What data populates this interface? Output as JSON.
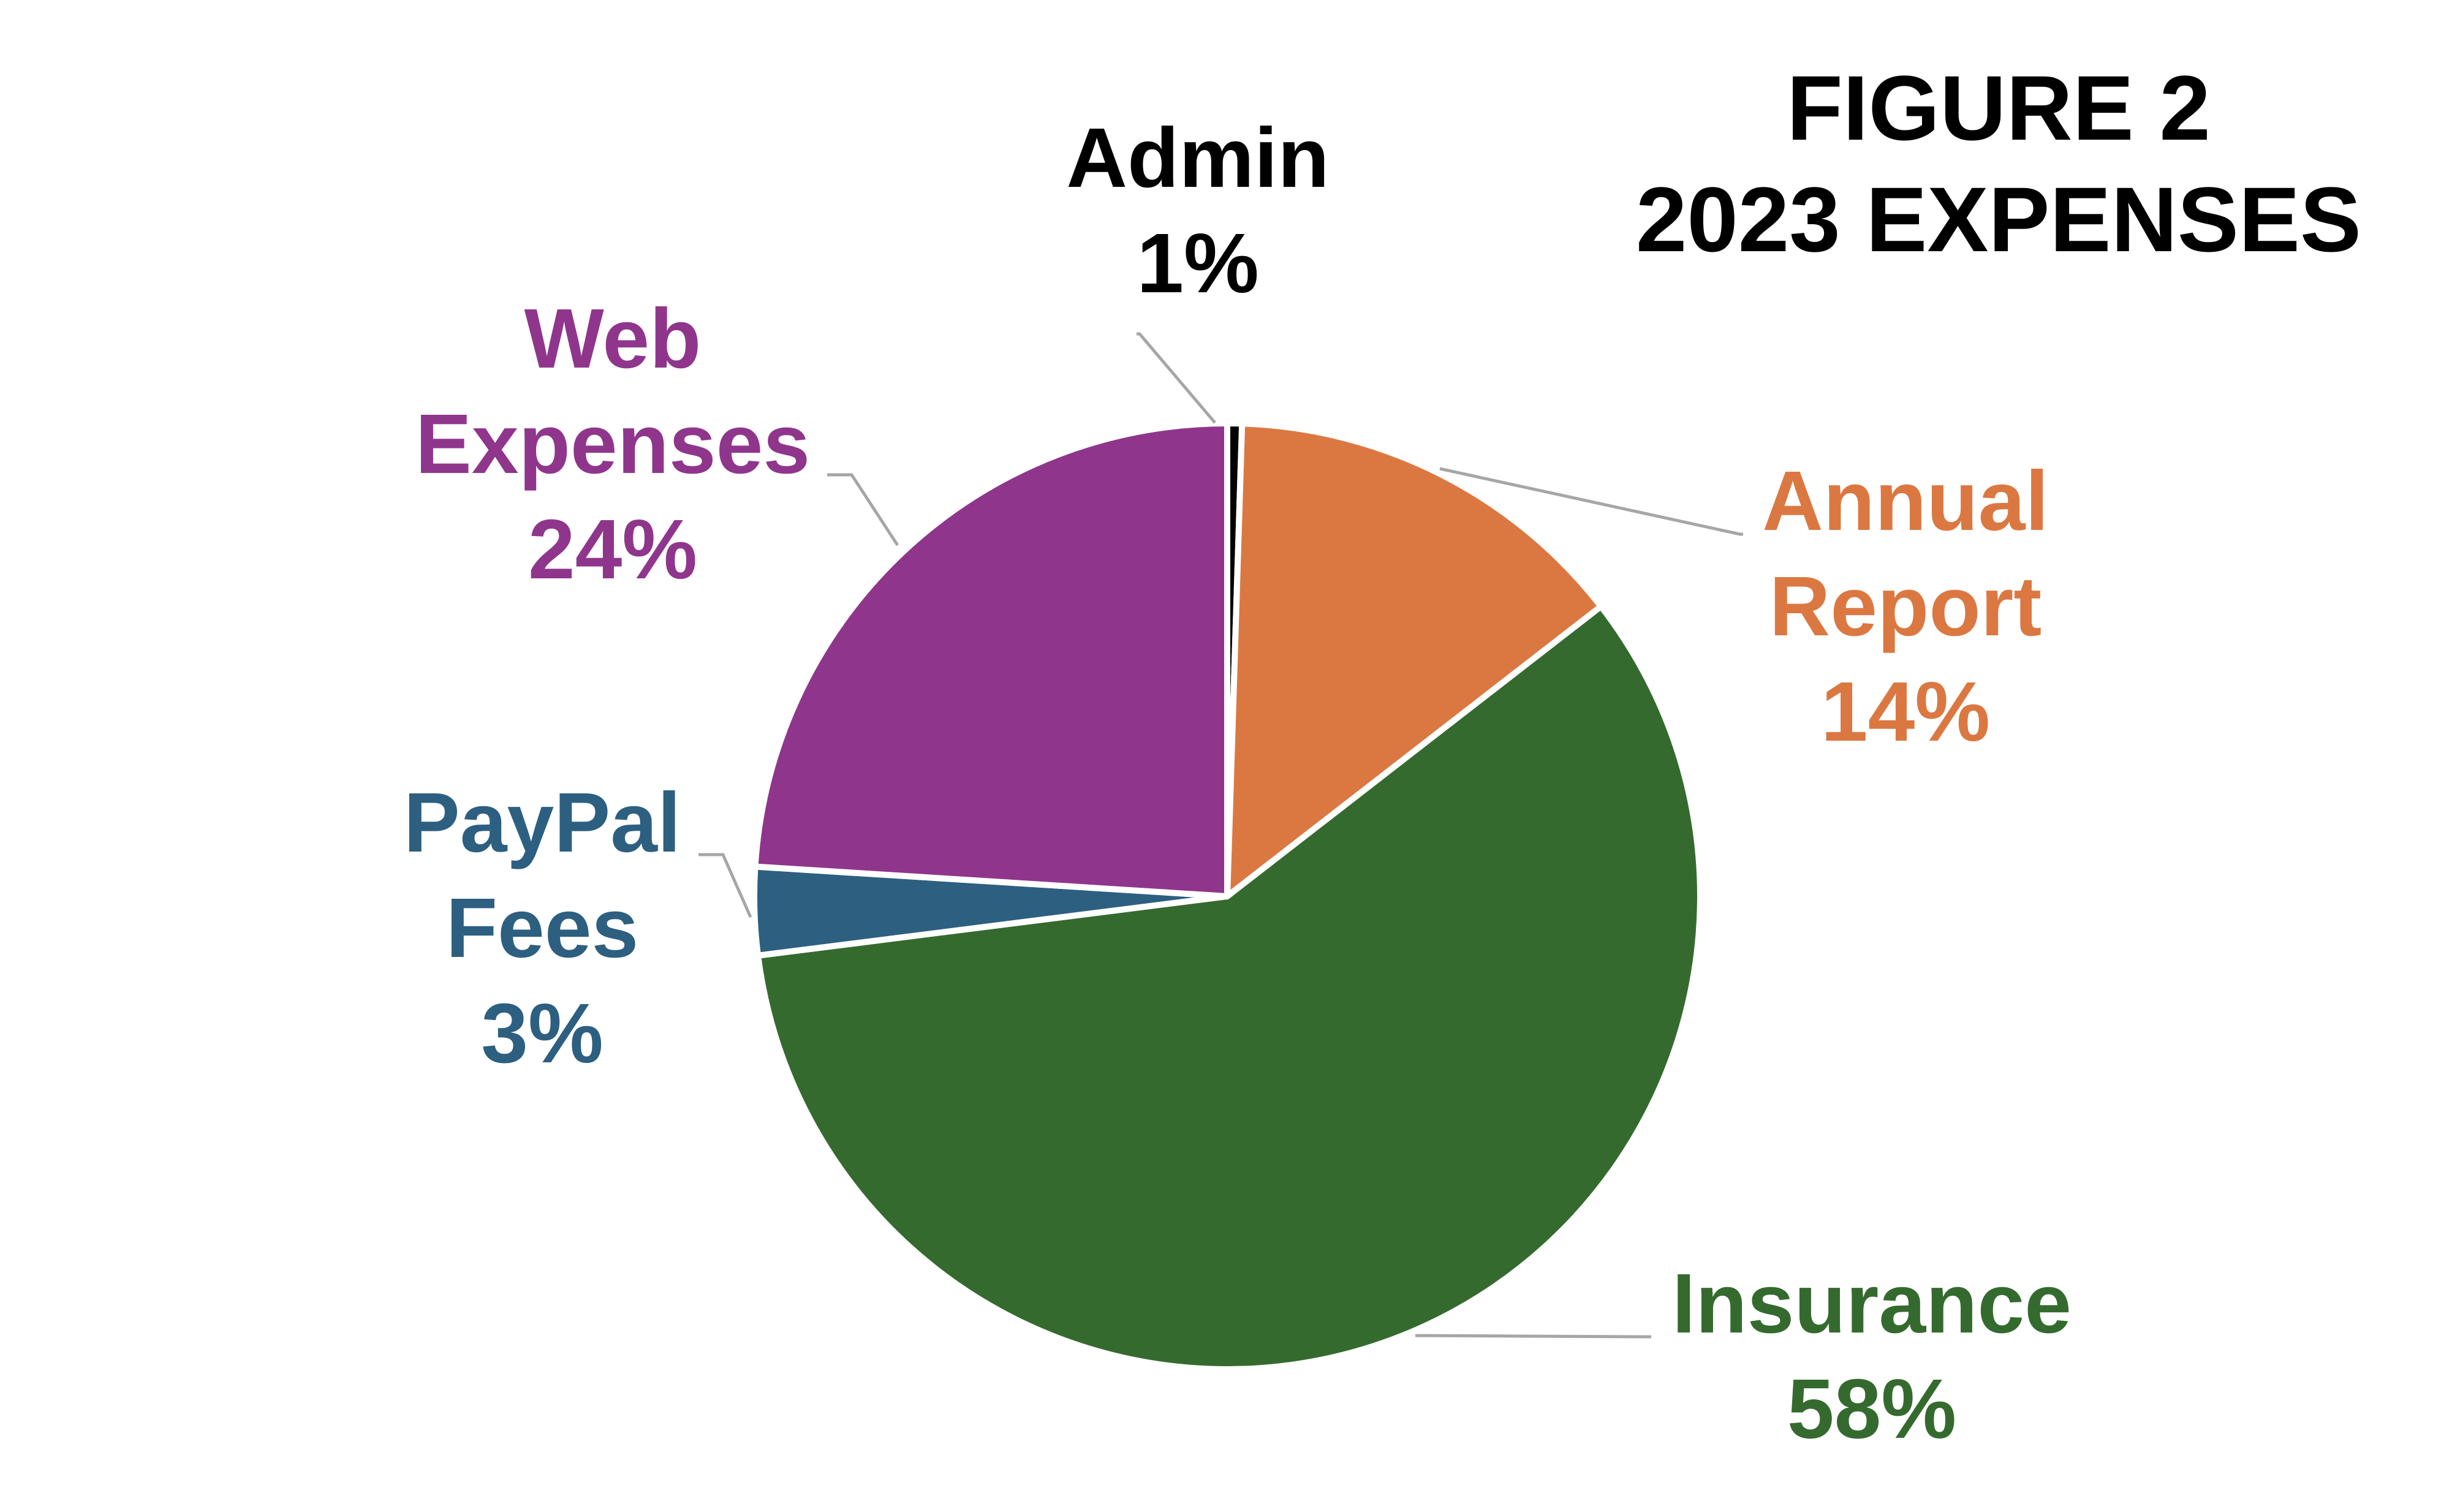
{
  "chart_data": {
    "type": "pie",
    "title_lines": [
      "FIGURE 2",
      "2023 EXPENSES"
    ],
    "slices": [
      {
        "label_lines": [
          "Admin"
        ],
        "percent_label": "1%",
        "value": 0.5,
        "color": "#000000",
        "label_color": "#000000"
      },
      {
        "label_lines": [
          "Annual",
          "Report"
        ],
        "percent_label": "14%",
        "value": 14,
        "color": "#DB7842",
        "label_color": "#DB7842"
      },
      {
        "label_lines": [
          "Insurance"
        ],
        "percent_label": "58%",
        "value": 58.5,
        "color": "#356A2F",
        "label_color": "#356A2F"
      },
      {
        "label_lines": [
          "PayPal",
          "Fees"
        ],
        "percent_label": "3%",
        "value": 3,
        "color": "#2D5F80",
        "label_color": "#2D5F80"
      },
      {
        "label_lines": [
          "Web",
          "Expenses"
        ],
        "percent_label": "24%",
        "value": 24,
        "color": "#8F368C",
        "label_color": "#8F368C"
      }
    ],
    "legend": "none",
    "data_labels": "outside with leader lines"
  }
}
